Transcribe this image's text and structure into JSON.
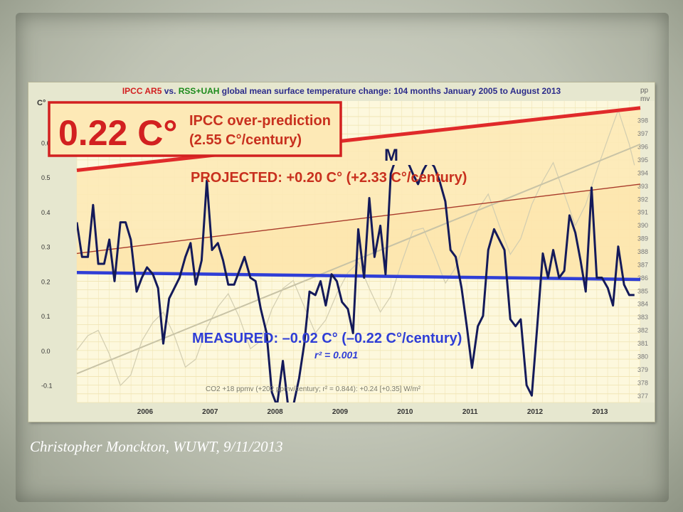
{
  "caption": "Christopher Monckton, WUWT, 9/11/2013",
  "chart_data": {
    "type": "line",
    "title_parts": [
      {
        "text": "IPCC AR5",
        "color": "#d22020"
      },
      {
        "text": " vs. ",
        "color": "#2b2b8a"
      },
      {
        "text": "RSS+UAH",
        "color": "#1b8a1b"
      },
      {
        "text": " global mean surface temperature change: 104 months January 2005 to August 2013",
        "color": "#2b2b8a"
      }
    ],
    "ylabel_left": "C°",
    "ylabel_right_line1": "pp",
    "ylabel_right_line2": "mv",
    "ylim_left": [
      -0.15,
      0.72
    ],
    "ylim_right": [
      376.5,
      399.5
    ],
    "y_ticks_left": [
      "0.6",
      "0.5",
      "0.4",
      "0.3",
      "0.2",
      "0.1",
      "0.0",
      "-0.1"
    ],
    "y_tick_values_left": [
      0.6,
      0.5,
      0.4,
      0.3,
      0.2,
      0.1,
      0.0,
      -0.1
    ],
    "y_ticks_right": [
      "398",
      "397",
      "396",
      "395",
      "394",
      "393",
      "392",
      "391",
      "390",
      "389",
      "388",
      "387",
      "386",
      "385",
      "384",
      "383",
      "382",
      "381",
      "380",
      "379",
      "378",
      "377"
    ],
    "x_ticks": [
      "2006",
      "2007",
      "2008",
      "2009",
      "2010",
      "2011",
      "2012",
      "2013"
    ],
    "x_tick_values": [
      2006,
      2007,
      2008,
      2009,
      2010,
      2011,
      2012,
      2013
    ],
    "xlim": [
      2005.0,
      2013.67
    ],
    "colors": {
      "ipcc": "#e02a2a",
      "projected": "#a83a2a",
      "measured_trend": "#2f3ed6",
      "measured": "#141a5a",
      "co2_trend": "#c8c3a6",
      "co2": "#d2cdb0",
      "shade": "#fde9b6",
      "box_red": "#d22020",
      "annotation_red": "#c8301e"
    },
    "ipcc_box_value": "0.22 C°",
    "ipcc_box_text_line1": "IPCC over-prediction",
    "ipcc_box_text_line2": "(2.55 C°/century)",
    "projected_label": "PROJECTED: +0.20 C° (+2.33 C°/century)",
    "measured_label": "MEASURED: –0.02 C° (–0.22 C°/century)",
    "r2_label": "r² = 0.001",
    "co2_label": "CO2 +18 ppmv (+202 ppmv/century; r² = 0.844): +0.24 [+0.35] W/m²",
    "m_label": "M",
    "ipcc_line": {
      "x": [
        2005.0,
        2013.67
      ],
      "y": [
        0.52,
        0.7
      ]
    },
    "projected_line": {
      "x": [
        2005.0,
        2013.67
      ],
      "y": [
        0.28,
        0.48
      ]
    },
    "measured_trend": {
      "x": [
        2005.0,
        2013.67
      ],
      "y": [
        0.225,
        0.205
      ]
    },
    "co2_trend": {
      "x": [
        2005.0,
        2013.67
      ],
      "y": [
        378.7,
        396.2
      ]
    },
    "measured_series": {
      "x": [
        2005.0,
        2005.08,
        2005.17,
        2005.25,
        2005.33,
        2005.42,
        2005.5,
        2005.58,
        2005.67,
        2005.75,
        2005.83,
        2005.92,
        2006.0,
        2006.08,
        2006.17,
        2006.25,
        2006.33,
        2006.42,
        2006.5,
        2006.58,
        2006.67,
        2006.75,
        2006.83,
        2006.92,
        2007.0,
        2007.08,
        2007.17,
        2007.25,
        2007.33,
        2007.42,
        2007.5,
        2007.58,
        2007.67,
        2007.75,
        2007.83,
        2007.92,
        2008.0,
        2008.08,
        2008.17,
        2008.25,
        2008.33,
        2008.42,
        2008.5,
        2008.58,
        2008.67,
        2008.75,
        2008.83,
        2008.92,
        2009.0,
        2009.08,
        2009.17,
        2009.25,
        2009.33,
        2009.42,
        2009.5,
        2009.58,
        2009.67,
        2009.75,
        2009.83,
        2009.92,
        2010.0,
        2010.08,
        2010.17,
        2010.25,
        2010.33,
        2010.42,
        2010.5,
        2010.58,
        2010.67,
        2010.75,
        2010.83,
        2010.92,
        2011.0,
        2011.08,
        2011.17,
        2011.25,
        2011.33,
        2011.42,
        2011.5,
        2011.58,
        2011.67,
        2011.75,
        2011.83,
        2011.92,
        2012.0,
        2012.08,
        2012.17,
        2012.25,
        2012.33,
        2012.42,
        2012.5,
        2012.58,
        2012.67,
        2012.75,
        2012.83,
        2012.92,
        2013.0,
        2013.08,
        2013.17,
        2013.25,
        2013.33,
        2013.42,
        2013.5,
        2013.58
      ],
      "y": [
        0.37,
        0.27,
        0.27,
        0.42,
        0.25,
        0.25,
        0.32,
        0.2,
        0.37,
        0.37,
        0.32,
        0.17,
        0.21,
        0.24,
        0.22,
        0.18,
        0.02,
        0.15,
        0.18,
        0.21,
        0.27,
        0.31,
        0.19,
        0.26,
        0.49,
        0.29,
        0.31,
        0.26,
        0.19,
        0.19,
        0.23,
        0.27,
        0.21,
        0.2,
        0.12,
        0.05,
        -0.12,
        -0.16,
        -0.03,
        -0.16,
        -0.16,
        -0.08,
        0.02,
        0.17,
        0.16,
        0.2,
        0.13,
        0.22,
        0.2,
        0.14,
        0.12,
        0.05,
        0.35,
        0.21,
        0.44,
        0.27,
        0.36,
        0.22,
        0.51,
        0.56,
        0.61,
        0.55,
        0.51,
        0.48,
        0.52,
        0.55,
        0.53,
        0.49,
        0.43,
        0.29,
        0.27,
        0.18,
        0.07,
        -0.05,
        0.07,
        0.1,
        0.29,
        0.35,
        0.32,
        0.29,
        0.09,
        0.07,
        0.09,
        -0.1,
        -0.13,
        0.06,
        0.28,
        0.21,
        0.29,
        0.21,
        0.23,
        0.39,
        0.34,
        0.26,
        0.17,
        0.47,
        0.21,
        0.21,
        0.18,
        0.13,
        0.3,
        0.19,
        0.16,
        0.16
      ]
    },
    "co2_series": {
      "x": [
        2005.0,
        2005.17,
        2005.33,
        2005.5,
        2005.67,
        2005.83,
        2006.0,
        2006.17,
        2006.33,
        2006.5,
        2006.67,
        2006.83,
        2007.0,
        2007.17,
        2007.33,
        2007.5,
        2007.67,
        2007.83,
        2008.0,
        2008.17,
        2008.33,
        2008.5,
        2008.67,
        2008.83,
        2009.0,
        2009.17,
        2009.33,
        2009.5,
        2009.67,
        2009.83,
        2010.0,
        2010.17,
        2010.33,
        2010.5,
        2010.67,
        2010.83,
        2011.0,
        2011.17,
        2011.33,
        2011.5,
        2011.67,
        2011.83,
        2012.0,
        2012.17,
        2012.33,
        2012.5,
        2012.67,
        2012.83,
        2013.0,
        2013.17,
        2013.33,
        2013.5,
        2013.58
      ],
      "y": [
        380.5,
        381.6,
        382.0,
        380.2,
        377.8,
        378.6,
        381.2,
        382.6,
        383.4,
        381.6,
        379.2,
        379.8,
        382.2,
        383.8,
        384.8,
        383.0,
        380.6,
        381.2,
        383.6,
        385.2,
        385.8,
        383.8,
        381.8,
        382.8,
        384.8,
        386.4,
        387.2,
        385.2,
        383.4,
        384.6,
        387.2,
        389.6,
        389.8,
        387.8,
        385.6,
        386.8,
        389.2,
        391.2,
        392.4,
        390.0,
        387.8,
        389.0,
        391.6,
        393.4,
        394.8,
        392.4,
        390.0,
        391.6,
        394.2,
        396.6,
        398.8,
        396.2,
        394.6
      ]
    }
  }
}
